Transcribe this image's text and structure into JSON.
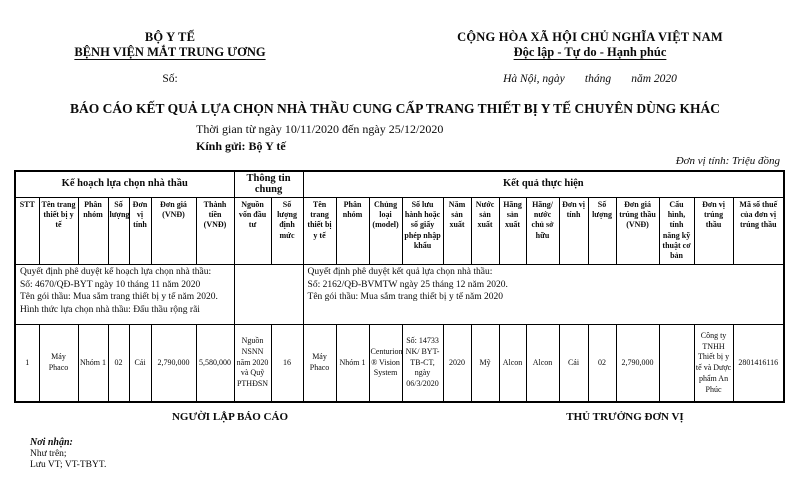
{
  "header": {
    "left": {
      "line1": "BỘ Y TẾ",
      "line2": "BỆNH VIỆN MẮT TRUNG ƯƠNG",
      "so": "Số:"
    },
    "right": {
      "line1": "CỘNG HÒA XÃ HỘI CHỦ NGHĨA VIỆT NAM",
      "line2": "Độc lập - Tự do - Hạnh phúc",
      "place_date": "Hà Nội, ngày       tháng       năm 2020"
    }
  },
  "title": {
    "main": "BÁO CÁO KẾT QUẢ LỰA CHỌN NHÀ THẦU CUNG CẤP TRANG THIẾT BỊ Y TẾ CHUYÊN DÙNG KHÁC",
    "period": "Thời gian từ ngày 10/11/2020 đến ngày 25/12/2020",
    "recipient": "Kính gửi: Bộ Y tế",
    "unit_note": "Đơn vị tính: Triệu đồng"
  },
  "table": {
    "groups": [
      {
        "label": "Kế hoạch lựa chọn nhà thầu",
        "span": 7
      },
      {
        "label": "Thông tin chung",
        "span": 2
      },
      {
        "label": "Kết quả thực hiện",
        "span": 14
      }
    ],
    "columns": [
      "STT",
      "Tên trang thiết bị y tế",
      "Phân nhóm",
      "Số lượng",
      "Đơn vị tính",
      "Đơn giá (VNĐ)",
      "Thành tiền (VNĐ)",
      "Nguồn vốn đầu tư",
      "Số lượng định mức",
      "Tên trang thiết bị y tế",
      "Phân nhóm",
      "Chủng loại (model)",
      "Số lưu hành hoặc số giấy phép nhập khẩu",
      "Năm sản xuất",
      "Nước sản xuất",
      "Hãng sản xuất",
      "Hãng/ nước chủ sở hữu",
      "Đơn vị tính",
      "Số lượng",
      "Đơn giá trúng thầu (VNĐ)",
      "Cấu hình, tính năng kỹ thuật cơ bản",
      "Đơn vị trúng thầu",
      "Mã số thuế của đơn vị trúng thầu"
    ],
    "decision_plan": [
      "Quyết định phê duyệt kế hoạch lựa chọn nhà thầu:",
      "Số: 4670/QĐ-BYT ngày 10 tháng 11 năm 2020",
      "Tên gói thầu: Mua sắm trang thiết bị y tế năm 2020.",
      "Hình thức lựa chọn nhà thầu: Đấu thầu rộng rãi"
    ],
    "decision_result": [
      "Quyết định phê duyệt kết quả lựa chọn nhà thầu:",
      "Số: 2162/QĐ-BVMTW ngày 25 tháng 12 năm 2020.",
      "Tên gói thầu: Mua sắm trang thiết bị y tế năm 2020"
    ],
    "rows": [
      [
        "1",
        "Máy Phaco",
        "Nhóm 1",
        "02",
        "Cái",
        "2,790,000",
        "5,580,000",
        "Nguồn NSNN năm 2020 và Quỹ PTHĐSN",
        "16",
        "Máy Phaco",
        "Nhóm 1",
        "Centurion ® Vision System",
        "Số: 14733 NK/ BYT-TB-CT, ngày 06/3/2020",
        "2020",
        "Mỹ",
        "Alcon",
        "Alcon",
        "Cái",
        "02",
        "2,790,000",
        "",
        "Công ty TNHH Thiết bị y tế và Dược phẩm An Phúc",
        "2801416116"
      ]
    ]
  },
  "footer": {
    "left_sign": "NGƯỜI LẬP BÁO CÁO",
    "right_sign": "THỦ TRƯỞNG ĐƠN VỊ",
    "recipients_label": "Nơi nhận:",
    "recipients": [
      "Như trên;",
      "Lưu VT; VT-TBYT."
    ]
  }
}
